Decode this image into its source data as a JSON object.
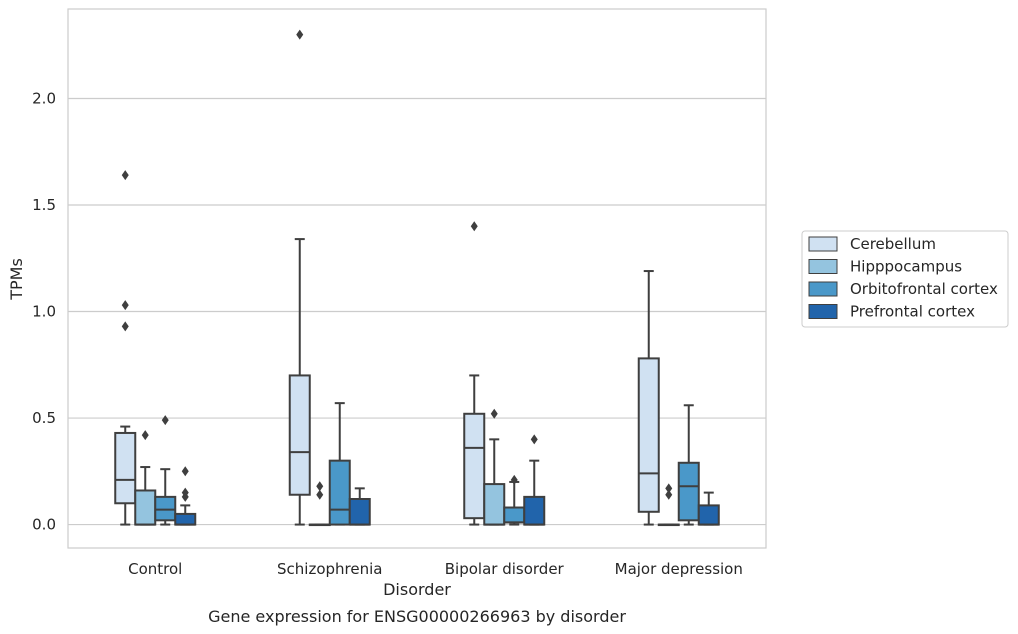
{
  "chart_data": {
    "type": "box",
    "caption": "Gene expression for ENSG00000266963 by disorder",
    "xlabel": "Disorder",
    "ylabel": "TPMs",
    "ylim": [
      -0.11,
      2.42
    ],
    "yticks": [
      0.0,
      0.5,
      1.0,
      1.5,
      2.0
    ],
    "ytick_labels": [
      "0.0",
      "0.5",
      "1.0",
      "1.5",
      "2.0"
    ],
    "grid": "horizontal",
    "legend_position": "right",
    "categories": [
      "Control",
      "Schizophrenia",
      "Bipolar disorder",
      "Major depression"
    ],
    "series": [
      {
        "name": "Cerebellum",
        "color": "#d0e1f2",
        "boxes": [
          {
            "min": 0.0,
            "q1": 0.1,
            "median": 0.21,
            "q3": 0.43,
            "max": 0.46,
            "outliers": [
              0.93,
              1.03,
              1.64
            ]
          },
          {
            "min": 0.0,
            "q1": 0.14,
            "median": 0.34,
            "q3": 0.7,
            "max": 1.34,
            "outliers": [
              2.3
            ]
          },
          {
            "min": 0.0,
            "q1": 0.03,
            "median": 0.36,
            "q3": 0.52,
            "max": 0.7,
            "outliers": [
              1.4
            ]
          },
          {
            "min": 0.0,
            "q1": 0.06,
            "median": 0.24,
            "q3": 0.78,
            "max": 1.19,
            "outliers": []
          }
        ]
      },
      {
        "name": "Hipppocampus",
        "color": "#94c4df",
        "boxes": [
          {
            "min": 0.0,
            "q1": 0.0,
            "median": 0.0,
            "q3": 0.16,
            "max": 0.27,
            "outliers": [
              0.42
            ]
          },
          {
            "min": 0.0,
            "q1": 0.0,
            "median": 0.0,
            "q3": 0.0,
            "max": 0.0,
            "outliers": [
              0.14,
              0.18
            ]
          },
          {
            "min": 0.0,
            "q1": 0.0,
            "median": 0.0,
            "q3": 0.19,
            "max": 0.4,
            "outliers": [
              0.52
            ]
          },
          {
            "min": 0.0,
            "q1": 0.0,
            "median": 0.0,
            "q3": 0.0,
            "max": 0.0,
            "outliers": [
              0.14,
              0.17
            ]
          }
        ]
      },
      {
        "name": "Orbitofrontal cortex",
        "color": "#4a98c9",
        "boxes": [
          {
            "min": 0.0,
            "q1": 0.02,
            "median": 0.07,
            "q3": 0.13,
            "max": 0.26,
            "outliers": [
              0.49
            ]
          },
          {
            "min": 0.0,
            "q1": 0.0,
            "median": 0.07,
            "q3": 0.3,
            "max": 0.57,
            "outliers": []
          },
          {
            "min": 0.0,
            "q1": 0.01,
            "median": 0.01,
            "q3": 0.08,
            "max": 0.2,
            "outliers": [
              0.21
            ]
          },
          {
            "min": 0.0,
            "q1": 0.02,
            "median": 0.18,
            "q3": 0.29,
            "max": 0.56,
            "outliers": []
          }
        ]
      },
      {
        "name": "Prefrontal cortex",
        "color": "#2164ab",
        "boxes": [
          {
            "min": 0.0,
            "q1": 0.0,
            "median": 0.0,
            "q3": 0.05,
            "max": 0.09,
            "outliers": [
              0.13,
              0.15,
              0.25
            ]
          },
          {
            "min": 0.0,
            "q1": 0.0,
            "median": 0.0,
            "q3": 0.12,
            "max": 0.17,
            "outliers": []
          },
          {
            "min": 0.0,
            "q1": 0.0,
            "median": 0.0,
            "q3": 0.13,
            "max": 0.3,
            "outliers": [
              0.4
            ]
          },
          {
            "min": 0.0,
            "q1": 0.0,
            "median": 0.0,
            "q3": 0.09,
            "max": 0.15,
            "outliers": []
          }
        ]
      }
    ]
  }
}
